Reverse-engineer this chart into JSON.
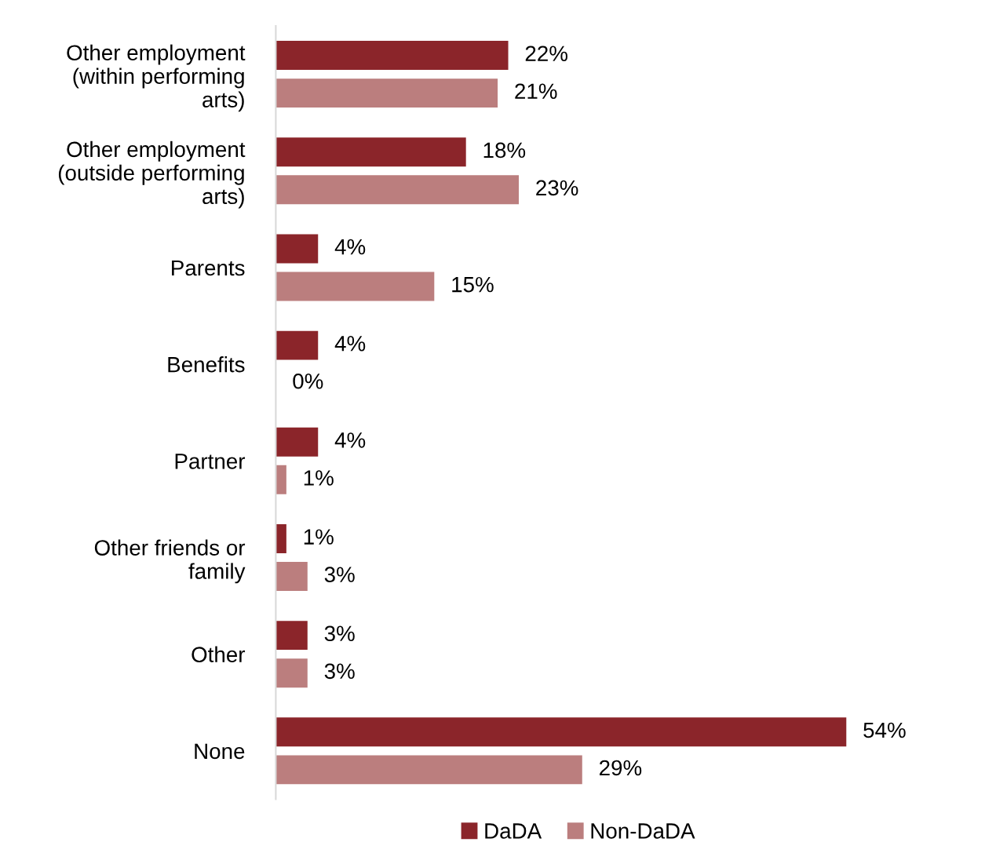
{
  "chart_data": {
    "type": "bar",
    "orientation": "horizontal",
    "categories": [
      "Other employment\n(within performing\narts)",
      "Other employment\n(outside performing\narts)",
      "Parents",
      "Benefits",
      "Partner",
      "Other friends or\nfamily",
      "Other",
      "None"
    ],
    "series": [
      {
        "name": "DaDA",
        "color": "#8b252a",
        "values": [
          22,
          18,
          4,
          4,
          4,
          1,
          3,
          54
        ],
        "value_labels": [
          "22%",
          "18%",
          "4%",
          "4%",
          "4%",
          "1%",
          "3%",
          "54%"
        ]
      },
      {
        "name": "Non-DaDA",
        "color": "#bb7e7e",
        "values": [
          21,
          23,
          15,
          0,
          1,
          3,
          3,
          29
        ],
        "value_labels": [
          "21%",
          "23%",
          "15%",
          "0%",
          "1%",
          "3%",
          "3%",
          "29%"
        ]
      }
    ],
    "legend": "bottom",
    "grid": false
  }
}
